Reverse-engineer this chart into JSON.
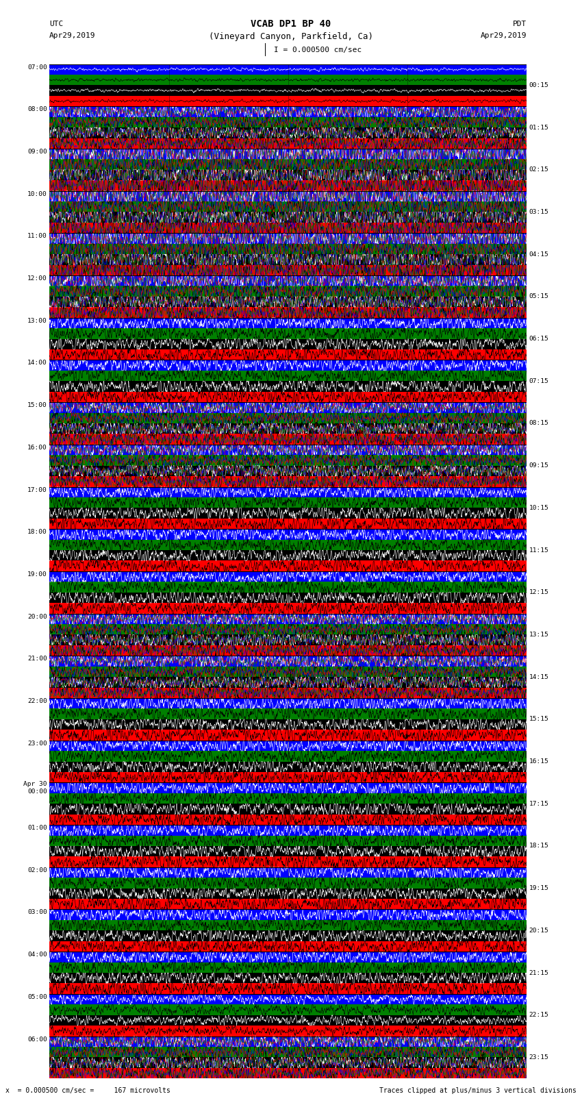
{
  "title_line1": "VCAB DP1 BP 40",
  "title_line2": "(Vineyard Canyon, Parkfield, Ca)",
  "scale_label": "I = 0.000500 cm/sec",
  "footer_left": "x  = 0.000500 cm/sec =     167 microvolts",
  "footer_right": "Traces clipped at plus/minus 3 vertical divisions",
  "utc_label": "UTC",
  "pdt_label": "PDT",
  "date_left": "Apr29,2019",
  "date_right": "Apr29,2019",
  "utc_times": [
    "07:00",
    "08:00",
    "09:00",
    "10:00",
    "11:00",
    "12:00",
    "13:00",
    "14:00",
    "15:00",
    "16:00",
    "17:00",
    "18:00",
    "19:00",
    "20:00",
    "21:00",
    "22:00",
    "23:00",
    "Apr 30\n00:00",
    "01:00",
    "02:00",
    "03:00",
    "04:00",
    "05:00",
    "06:00"
  ],
  "pdt_times": [
    "00:15",
    "01:15",
    "02:15",
    "03:15",
    "04:15",
    "05:15",
    "06:15",
    "07:15",
    "08:15",
    "09:15",
    "10:15",
    "11:15",
    "12:15",
    "13:15",
    "14:15",
    "15:15",
    "16:15",
    "17:15",
    "18:15",
    "19:15",
    "20:15",
    "21:15",
    "22:15",
    "23:15"
  ],
  "color_cycle": [
    "#0000ff",
    "#008000",
    "#000000",
    "#ff0000"
  ],
  "n_hours": 24,
  "n_rows_per_hour": 4
}
